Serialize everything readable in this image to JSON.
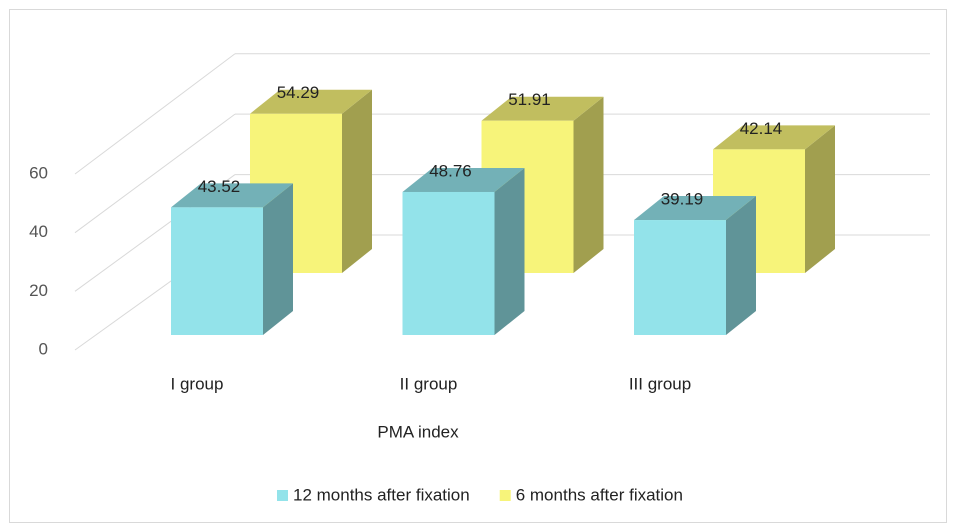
{
  "chart_data": {
    "type": "bar3d",
    "xlabel": "PMA index",
    "categories": [
      "I group",
      "II group",
      "III group"
    ],
    "series": [
      {
        "name": "12 months after fixation",
        "color": "#93e3ea",
        "values": [
          43.52,
          48.76,
          39.19
        ]
      },
      {
        "name": "6 months after fixation",
        "color": "#f7f47a",
        "values": [
          54.29,
          51.91,
          42.14
        ]
      }
    ],
    "ylim": [
      0,
      60
    ],
    "yticks": [
      0,
      20,
      40,
      60
    ],
    "grid": true,
    "legend": "bottom"
  }
}
